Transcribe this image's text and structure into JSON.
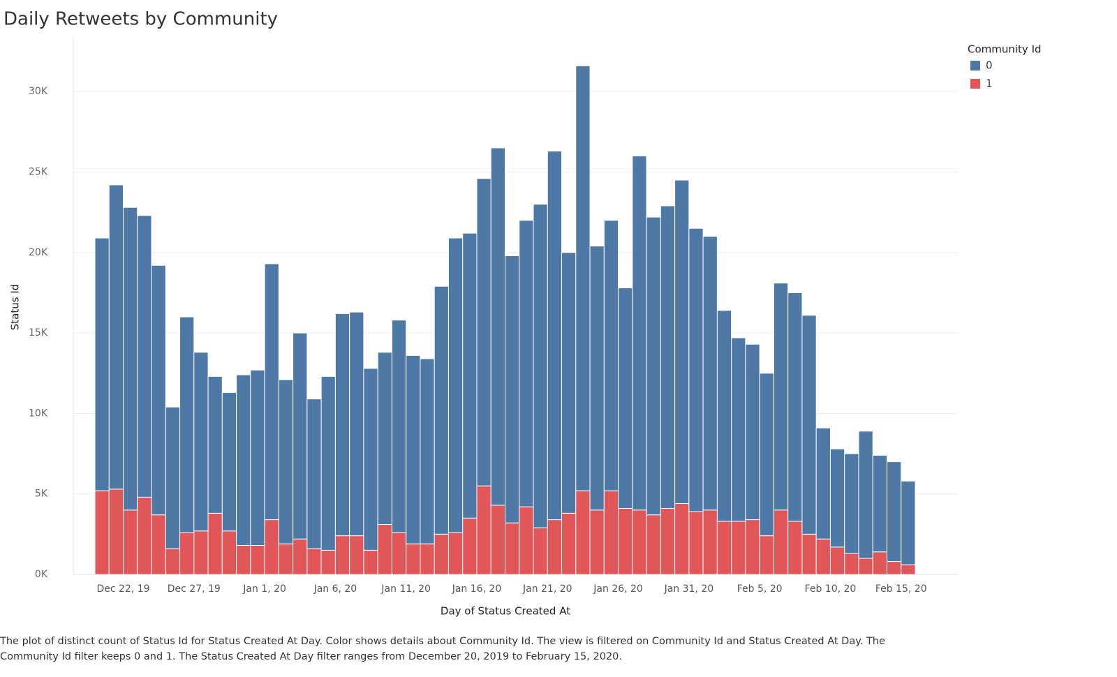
{
  "chart_data": {
    "type": "stacked-bar",
    "title": "Daily Retweets by Community",
    "x_label": "Day of Status Created At",
    "y_label": "Status Id",
    "legend_title": "Community Id",
    "legend_position": "top-right",
    "grid": true,
    "caption": "The plot of distinct count of Status Id for Status Created At Day.  Color shows details about Community Id. The view is filtered on Community Id and Status Created At Day. The Community Id filter keeps 0 and 1. The Status Created At Day filter ranges from December 20, 2019 to February 15, 2020.",
    "categories": [
      null,
      null,
      "Dec 22, 19",
      null,
      null,
      null,
      null,
      "Dec 27, 19",
      null,
      null,
      null,
      null,
      "Jan 1, 20",
      null,
      null,
      null,
      null,
      "Jan 6, 20",
      null,
      null,
      null,
      null,
      "Jan 11, 20",
      null,
      null,
      null,
      null,
      "Jan 16, 20",
      null,
      null,
      null,
      null,
      "Jan 21, 20",
      null,
      null,
      null,
      null,
      "Jan 26, 20",
      null,
      null,
      null,
      null,
      "Jan 31, 20",
      null,
      null,
      null,
      null,
      "Feb 5, 20",
      null,
      null,
      null,
      null,
      "Feb 10, 20",
      null,
      null,
      null,
      null,
      "Feb 15, 20"
    ],
    "ylim": [
      0,
      33000
    ],
    "yticks": [
      {
        "value": 0,
        "label": "0K"
      },
      {
        "value": 5000,
        "label": "5K"
      },
      {
        "value": 10000,
        "label": "10K"
      },
      {
        "value": 15000,
        "label": "15K"
      },
      {
        "value": 20000,
        "label": "20K"
      },
      {
        "value": 25000,
        "label": "25K"
      },
      {
        "value": 30000,
        "label": "30K"
      }
    ],
    "series": [
      {
        "name": "0",
        "color": "#4e79a7",
        "values": [
          15700,
          18900,
          18800,
          17500,
          15500,
          8800,
          13400,
          11100,
          8500,
          8600,
          10600,
          10900,
          15900,
          10200,
          12800,
          9300,
          10800,
          13800,
          13900,
          11300,
          10700,
          13200,
          11700,
          11500,
          15400,
          18300,
          17700,
          19100,
          22200,
          16600,
          17800,
          20100,
          22900,
          16200,
          26400,
          16400,
          16800,
          13700,
          22000,
          18500,
          18800,
          20100,
          17600,
          17000,
          13100,
          11400,
          10900,
          10100,
          14100,
          14200,
          13600,
          6900,
          6100,
          6200,
          7900,
          6000,
          6200,
          5200
        ]
      },
      {
        "name": "1",
        "color": "#e15759",
        "values": [
          5200,
          5300,
          4000,
          4800,
          3700,
          1600,
          2600,
          2700,
          3800,
          2700,
          1800,
          1800,
          3400,
          1900,
          2200,
          1600,
          1500,
          2400,
          2400,
          1500,
          3100,
          2600,
          1900,
          1900,
          2500,
          2600,
          3500,
          5500,
          4300,
          3200,
          4200,
          2900,
          3400,
          3800,
          5200,
          4000,
          5200,
          4100,
          4000,
          3700,
          4100,
          4400,
          3900,
          4000,
          3300,
          3300,
          3400,
          2400,
          4000,
          3300,
          2500,
          2200,
          1700,
          1300,
          1000,
          1400,
          800,
          600
        ]
      }
    ]
  }
}
